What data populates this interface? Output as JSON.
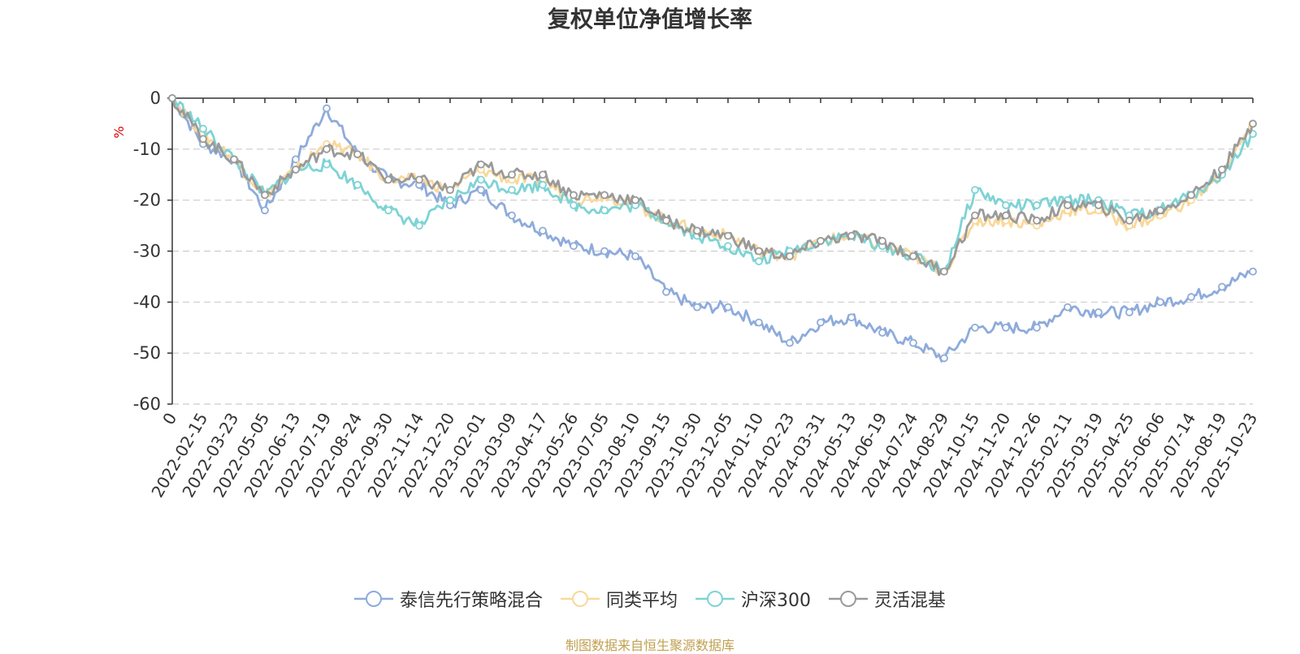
{
  "chart_data": {
    "type": "line",
    "title": "复权单位净值增长率",
    "ylabel": "%",
    "xlabel": "",
    "ylim": [
      -60,
      0
    ],
    "yticks": [
      0,
      -10,
      -20,
      -30,
      -40,
      -50,
      -60
    ],
    "grid": true,
    "legend_position": "bottom",
    "x": [
      "0",
      "2022-02-15",
      "2022-03-23",
      "2022-05-05",
      "2022-06-13",
      "2022-07-19",
      "2022-08-24",
      "2022-09-30",
      "2022-11-14",
      "2022-12-20",
      "2023-02-01",
      "2023-03-09",
      "2023-04-17",
      "2023-05-26",
      "2023-07-05",
      "2023-08-10",
      "2023-09-15",
      "2023-10-30",
      "2023-12-05",
      "2024-01-10",
      "2024-02-23",
      "2024-03-31",
      "2024-05-13",
      "2024-06-19",
      "2024-07-24",
      "2024-08-29",
      "2024-10-15",
      "2024-11-20",
      "2024-12-26",
      "2025-02-11",
      "2025-03-19",
      "2025-04-25",
      "2025-06-06",
      "2025-07-14",
      "2025-08-19",
      "2025-10-23"
    ],
    "series": [
      {
        "name": "泰信先行策略混合",
        "color": "#8eabdb",
        "values": [
          0,
          -9,
          -12,
          -22,
          -12,
          -2,
          -11,
          -16,
          -17,
          -21,
          -18,
          -23,
          -26,
          -29,
          -30,
          -31,
          -38,
          -41,
          -41,
          -44,
          -48,
          -44,
          -43,
          -46,
          -48,
          -51,
          -45,
          -45,
          -45,
          -41,
          -42,
          -42,
          -40,
          -39,
          -37,
          -34
        ]
      },
      {
        "name": "同类平均",
        "color": "#f9d89a",
        "values": [
          0,
          -7,
          -12,
          -19,
          -14,
          -9,
          -11,
          -16,
          -16,
          -18,
          -14,
          -16,
          -16,
          -20,
          -19,
          -21,
          -24,
          -26,
          -27,
          -30,
          -31,
          -28,
          -27,
          -29,
          -31,
          -34,
          -24,
          -24,
          -25,
          -22,
          -22,
          -25,
          -23,
          -20,
          -15,
          -5
        ]
      },
      {
        "name": "沪深300",
        "color": "#7ed3d5",
        "values": [
          0,
          -6,
          -12,
          -19,
          -14,
          -13,
          -17,
          -22,
          -25,
          -20,
          -16,
          -18,
          -17,
          -21,
          -22,
          -21,
          -24,
          -27,
          -29,
          -32,
          -30,
          -28,
          -27,
          -29,
          -31,
          -34,
          -18,
          -21,
          -21,
          -20,
          -20,
          -23,
          -22,
          -19,
          -15,
          -7
        ]
      },
      {
        "name": "灵活混基",
        "color": "#9a9a9a",
        "values": [
          0,
          -8,
          -12,
          -19,
          -14,
          -10,
          -11,
          -16,
          -16,
          -18,
          -13,
          -15,
          -15,
          -19,
          -19,
          -20,
          -24,
          -26,
          -27,
          -30,
          -31,
          -28,
          -27,
          -28,
          -31,
          -34,
          -23,
          -23,
          -24,
          -21,
          -21,
          -24,
          -22,
          -19,
          -14,
          -5
        ]
      }
    ]
  },
  "source_note": "制图数据来自恒生聚源数据库"
}
